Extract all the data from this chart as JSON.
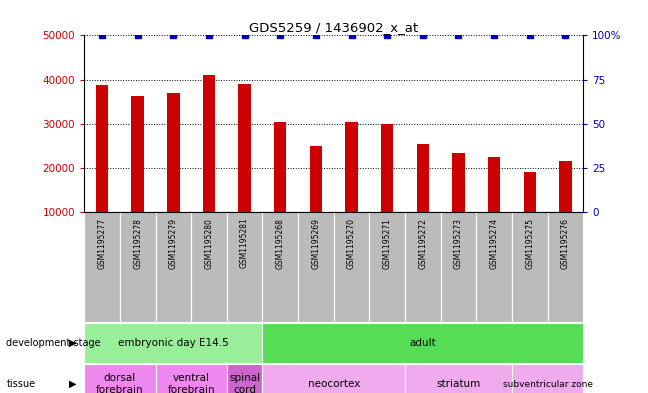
{
  "title": "GDS5259 / 1436902_x_at",
  "samples": [
    "GSM1195277",
    "GSM1195278",
    "GSM1195279",
    "GSM1195280",
    "GSM1195281",
    "GSM1195268",
    "GSM1195269",
    "GSM1195270",
    "GSM1195271",
    "GSM1195272",
    "GSM1195273",
    "GSM1195274",
    "GSM1195275",
    "GSM1195276"
  ],
  "counts": [
    38700,
    36200,
    37000,
    41000,
    39000,
    30500,
    25000,
    30500,
    30000,
    25500,
    23500,
    22500,
    19000,
    21500
  ],
  "bar_color": "#cc0000",
  "dot_color": "#0000bb",
  "ylim_left": [
    10000,
    50000
  ],
  "ylim_right": [
    0,
    100
  ],
  "yticks_left": [
    10000,
    20000,
    30000,
    40000,
    50000
  ],
  "yticks_right": [
    0,
    25,
    50,
    75,
    100
  ],
  "grid_dotted_at": [
    20000,
    30000,
    40000,
    50000
  ],
  "dev_stage_groups": [
    {
      "label": "embryonic day E14.5",
      "start": 0,
      "end": 4,
      "color": "#99ee99"
    },
    {
      "label": "adult",
      "start": 5,
      "end": 13,
      "color": "#55dd55"
    }
  ],
  "tissue_groups": [
    {
      "label": "dorsal\nforebrain",
      "start": 0,
      "end": 1,
      "color": "#ee88ee"
    },
    {
      "label": "ventral\nforebrain",
      "start": 2,
      "end": 3,
      "color": "#ee88ee"
    },
    {
      "label": "spinal\ncord",
      "start": 4,
      "end": 4,
      "color": "#cc66cc"
    },
    {
      "label": "neocortex",
      "start": 5,
      "end": 8,
      "color": "#f0aaee"
    },
    {
      "label": "striatum",
      "start": 9,
      "end": 11,
      "color": "#f0aaee"
    },
    {
      "label": "subventricular zone",
      "start": 12,
      "end": 13,
      "color": "#f0aaee"
    }
  ],
  "sample_bg_color": "#bbbbbb",
  "bar_width": 0.35
}
